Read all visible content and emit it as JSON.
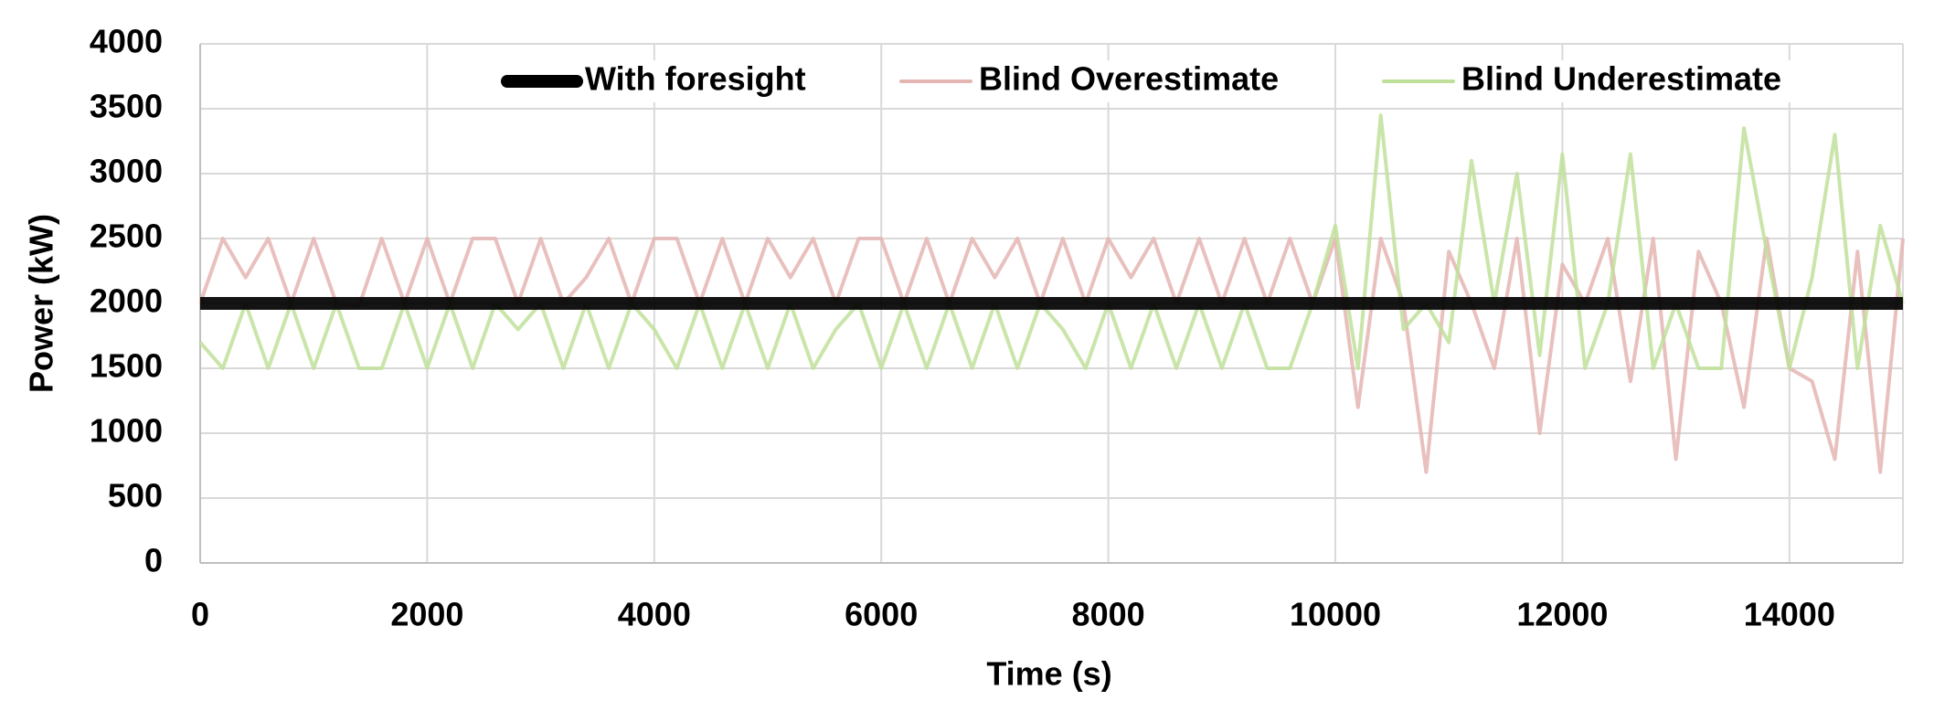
{
  "chart_data": {
    "type": "line",
    "x_label": "Time (s)",
    "y_label": "Power (kW)",
    "xlim": [
      0,
      15000
    ],
    "xticks": [
      0,
      2000,
      4000,
      6000,
      8000,
      10000,
      12000,
      14000
    ],
    "ylim": [
      0,
      4000
    ],
    "yticks": [
      0,
      500,
      1000,
      1500,
      2000,
      2500,
      3000,
      3500,
      4000
    ],
    "grid": true,
    "legend": "top",
    "x": [
      0,
      200,
      400,
      600,
      800,
      1000,
      1200,
      1400,
      1600,
      1800,
      2000,
      2200,
      2400,
      2600,
      2800,
      3000,
      3200,
      3400,
      3600,
      3800,
      4000,
      4200,
      4400,
      4600,
      4800,
      5000,
      5200,
      5400,
      5600,
      5800,
      6000,
      6200,
      6400,
      6600,
      6800,
      7000,
      7200,
      7400,
      7600,
      7800,
      8000,
      8200,
      8400,
      8600,
      8800,
      9000,
      9200,
      9400,
      9600,
      9800,
      10000,
      10200,
      10400,
      10600,
      10800,
      11000,
      11200,
      11400,
      11600,
      11800,
      12000,
      12200,
      12400,
      12600,
      12800,
      13000,
      13200,
      13400,
      13600,
      13800,
      14000,
      14200,
      14400,
      14600,
      14800,
      15000
    ],
    "series": [
      {
        "name": "Blind Overestimate",
        "color": "#e4b5b3",
        "width": 4,
        "values": [
          2000,
          2500,
          2200,
          2500,
          2000,
          2500,
          2000,
          1980,
          2500,
          2000,
          2500,
          2000,
          2500,
          2500,
          2000,
          2500,
          2000,
          2200,
          2500,
          2000,
          2500,
          2500,
          2000,
          2500,
          2000,
          2500,
          2200,
          2500,
          2000,
          2500,
          2500,
          2000,
          2500,
          2000,
          2500,
          2200,
          2500,
          2000,
          2500,
          2000,
          2500,
          2200,
          2500,
          2000,
          2500,
          2000,
          2500,
          2000,
          2500,
          2000,
          2500,
          1200,
          2500,
          2000,
          700,
          2400,
          2000,
          1500,
          2500,
          1000,
          2300,
          2000,
          2500,
          1400,
          2500,
          800,
          2400,
          2000,
          1200,
          2500,
          1500,
          1400,
          800,
          2400,
          700,
          2500
        ]
      },
      {
        "name": "Blind Underestimate",
        "color": "#bfe09a",
        "width": 4,
        "values": [
          1700,
          1500,
          2000,
          1500,
          2000,
          1500,
          2000,
          1500,
          1500,
          2000,
          1500,
          2000,
          1500,
          2000,
          1800,
          2000,
          1500,
          2000,
          1500,
          2000,
          1800,
          1500,
          2000,
          1500,
          2000,
          1500,
          2000,
          1500,
          1800,
          2000,
          1500,
          2000,
          1500,
          2000,
          1500,
          2000,
          1500,
          2000,
          1800,
          1500,
          2000,
          1500,
          2000,
          1500,
          2000,
          1500,
          2000,
          1500,
          1500,
          2000,
          2600,
          1500,
          3450,
          1800,
          2000,
          1700,
          3100,
          2000,
          3000,
          1600,
          3150,
          1500,
          2000,
          3150,
          1500,
          2000,
          1500,
          1500,
          3350,
          2400,
          1500,
          2200,
          3300,
          1500,
          2600,
          2000
        ]
      },
      {
        "name": "With foresight",
        "color": "#000000",
        "width": 14,
        "values": [
          2000,
          2000,
          2000,
          2000,
          2000,
          2000,
          2000,
          2000,
          2000,
          2000,
          2000,
          2000,
          2000,
          2000,
          2000,
          2000,
          2000,
          2000,
          2000,
          2000,
          2000,
          2000,
          2000,
          2000,
          2000,
          2000,
          2000,
          2000,
          2000,
          2000,
          2000,
          2000,
          2000,
          2000,
          2000,
          2000,
          2000,
          2000,
          2000,
          2000,
          2000,
          2000,
          2000,
          2000,
          2000,
          2000,
          2000,
          2000,
          2000,
          2000,
          2000,
          2000,
          2000,
          2000,
          2000,
          2000,
          2000,
          2000,
          2000,
          2000,
          2000,
          2000,
          2000,
          2000,
          2000,
          2000,
          2000,
          2000,
          2000,
          2000,
          2000,
          2000,
          2000,
          2000,
          2000,
          2000
        ]
      }
    ]
  }
}
